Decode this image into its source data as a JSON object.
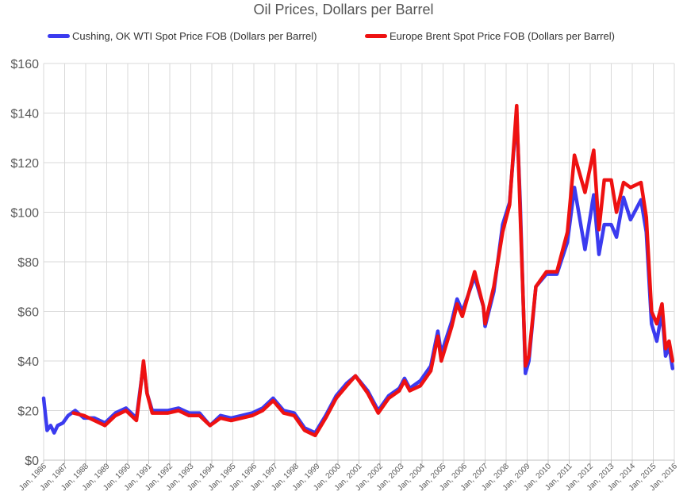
{
  "chart_data": {
    "type": "line",
    "title": "Oil Prices, Dollars per Barrel",
    "xlabel": "",
    "ylabel": "",
    "ylim": [
      0,
      160
    ],
    "yticks": [
      "$0",
      "$20",
      "$40",
      "$60",
      "$80",
      "$100",
      "$120",
      "$140",
      "$160"
    ],
    "xticks": [
      "Jan, 1986",
      "Jan, 1987",
      "Jan, 1988",
      "Jan, 1989",
      "Jan, 1990",
      "Jan, 1991",
      "Jan, 1992",
      "Jan, 1993",
      "Jan, 1994",
      "Jan, 1995",
      "Jan, 1996",
      "Jan, 1997",
      "Jan, 1998",
      "Jan, 1999",
      "Jan, 2000",
      "Jan, 2001",
      "Jan, 2002",
      "Jan, 2003",
      "Jan, 2004",
      "Jan, 2005",
      "Jan, 2006",
      "Jan, 2007",
      "Jan, 2008",
      "Jan, 2009",
      "Jan, 2010",
      "Jan, 2011",
      "Jan, 2012",
      "Jan, 2013",
      "Jan, 2014",
      "Jan, 2015",
      "Jan, 2016"
    ],
    "grid": true,
    "legend_position": "top",
    "series": [
      {
        "name": "Cushing, OK WTI Spot Price FOB (Dollars per Barrel)",
        "color": "#3b3bef",
        "points": [
          [
            "1986-01",
            25
          ],
          [
            "1986-03",
            12
          ],
          [
            "1986-05",
            14
          ],
          [
            "1986-07",
            11
          ],
          [
            "1986-09",
            14
          ],
          [
            "1986-12",
            15
          ],
          [
            "1987-03",
            18
          ],
          [
            "1987-07",
            20
          ],
          [
            "1987-12",
            17
          ],
          [
            "1988-06",
            17
          ],
          [
            "1988-12",
            15
          ],
          [
            "1989-06",
            19
          ],
          [
            "1989-12",
            21
          ],
          [
            "1990-06",
            17
          ],
          [
            "1990-08",
            28
          ],
          [
            "1990-10",
            39
          ],
          [
            "1990-12",
            27
          ],
          [
            "1991-03",
            20
          ],
          [
            "1991-12",
            20
          ],
          [
            "1992-06",
            21
          ],
          [
            "1992-12",
            19
          ],
          [
            "1993-06",
            19
          ],
          [
            "1993-12",
            14
          ],
          [
            "1994-06",
            18
          ],
          [
            "1994-12",
            17
          ],
          [
            "1995-06",
            18
          ],
          [
            "1995-12",
            19
          ],
          [
            "1996-06",
            21
          ],
          [
            "1996-12",
            25
          ],
          [
            "1997-06",
            20
          ],
          [
            "1997-12",
            19
          ],
          [
            "1998-06",
            13
          ],
          [
            "1998-12",
            11
          ],
          [
            "1999-06",
            18
          ],
          [
            "1999-12",
            26
          ],
          [
            "2000-06",
            31
          ],
          [
            "2000-11",
            34
          ],
          [
            "2001-06",
            28
          ],
          [
            "2001-12",
            20
          ],
          [
            "2002-06",
            26
          ],
          [
            "2002-12",
            29
          ],
          [
            "2003-03",
            33
          ],
          [
            "2003-06",
            29
          ],
          [
            "2003-12",
            32
          ],
          [
            "2004-06",
            38
          ],
          [
            "2004-10",
            52
          ],
          [
            "2004-12",
            43
          ],
          [
            "2005-06",
            56
          ],
          [
            "2005-09",
            65
          ],
          [
            "2005-12",
            60
          ],
          [
            "2006-07",
            74
          ],
          [
            "2006-12",
            62
          ],
          [
            "2007-01",
            54
          ],
          [
            "2007-06",
            68
          ],
          [
            "2007-11",
            95
          ],
          [
            "2008-03",
            104
          ],
          [
            "2008-07",
            140
          ],
          [
            "2008-09",
            104
          ],
          [
            "2008-12",
            35
          ],
          [
            "2009-02",
            40
          ],
          [
            "2009-06",
            70
          ],
          [
            "2009-12",
            75
          ],
          [
            "2010-06",
            75
          ],
          [
            "2010-12",
            88
          ],
          [
            "2011-04",
            110
          ],
          [
            "2011-10",
            85
          ],
          [
            "2012-03",
            107
          ],
          [
            "2012-06",
            83
          ],
          [
            "2012-09",
            95
          ],
          [
            "2013-01",
            95
          ],
          [
            "2013-04",
            90
          ],
          [
            "2013-08",
            106
          ],
          [
            "2013-12",
            97
          ],
          [
            "2014-06",
            105
          ],
          [
            "2014-09",
            92
          ],
          [
            "2014-12",
            55
          ],
          [
            "2015-03",
            48
          ],
          [
            "2015-06",
            60
          ],
          [
            "2015-08",
            42
          ],
          [
            "2015-10",
            46
          ],
          [
            "2015-12",
            37
          ]
        ]
      },
      {
        "name": "Europe Brent Spot Price FOB (Dollars per Barrel)",
        "color": "#ee1111",
        "points": [
          [
            "1987-06",
            19
          ],
          [
            "1987-12",
            18
          ],
          [
            "1988-06",
            16
          ],
          [
            "1988-12",
            14
          ],
          [
            "1989-06",
            18
          ],
          [
            "1989-12",
            20
          ],
          [
            "1990-06",
            16
          ],
          [
            "1990-08",
            27
          ],
          [
            "1990-10",
            40
          ],
          [
            "1990-12",
            27
          ],
          [
            "1991-03",
            19
          ],
          [
            "1991-12",
            19
          ],
          [
            "1992-06",
            20
          ],
          [
            "1992-12",
            18
          ],
          [
            "1993-06",
            18
          ],
          [
            "1993-12",
            14
          ],
          [
            "1994-06",
            17
          ],
          [
            "1994-12",
            16
          ],
          [
            "1995-06",
            17
          ],
          [
            "1995-12",
            18
          ],
          [
            "1996-06",
            20
          ],
          [
            "1996-12",
            24
          ],
          [
            "1997-06",
            19
          ],
          [
            "1997-12",
            18
          ],
          [
            "1998-06",
            12
          ],
          [
            "1998-12",
            10
          ],
          [
            "1999-06",
            17
          ],
          [
            "1999-12",
            25
          ],
          [
            "2000-06",
            30
          ],
          [
            "2000-11",
            34
          ],
          [
            "2001-06",
            27
          ],
          [
            "2001-12",
            19
          ],
          [
            "2002-06",
            25
          ],
          [
            "2002-12",
            28
          ],
          [
            "2003-03",
            32
          ],
          [
            "2003-06",
            28
          ],
          [
            "2003-12",
            30
          ],
          [
            "2004-06",
            36
          ],
          [
            "2004-10",
            50
          ],
          [
            "2004-12",
            40
          ],
          [
            "2005-06",
            54
          ],
          [
            "2005-09",
            63
          ],
          [
            "2005-12",
            58
          ],
          [
            "2006-07",
            76
          ],
          [
            "2006-12",
            62
          ],
          [
            "2007-01",
            55
          ],
          [
            "2007-06",
            70
          ],
          [
            "2007-11",
            92
          ],
          [
            "2008-03",
            103
          ],
          [
            "2008-07",
            143
          ],
          [
            "2008-09",
            100
          ],
          [
            "2008-12",
            38
          ],
          [
            "2009-02",
            42
          ],
          [
            "2009-06",
            70
          ],
          [
            "2009-12",
            76
          ],
          [
            "2010-06",
            76
          ],
          [
            "2010-12",
            92
          ],
          [
            "2011-04",
            123
          ],
          [
            "2011-10",
            108
          ],
          [
            "2012-03",
            125
          ],
          [
            "2012-06",
            93
          ],
          [
            "2012-09",
            113
          ],
          [
            "2013-01",
            113
          ],
          [
            "2013-04",
            100
          ],
          [
            "2013-08",
            112
          ],
          [
            "2013-12",
            110
          ],
          [
            "2014-06",
            112
          ],
          [
            "2014-09",
            98
          ],
          [
            "2014-12",
            60
          ],
          [
            "2015-03",
            55
          ],
          [
            "2015-06",
            63
          ],
          [
            "2015-08",
            45
          ],
          [
            "2015-10",
            48
          ],
          [
            "2015-12",
            40
          ]
        ]
      }
    ]
  }
}
